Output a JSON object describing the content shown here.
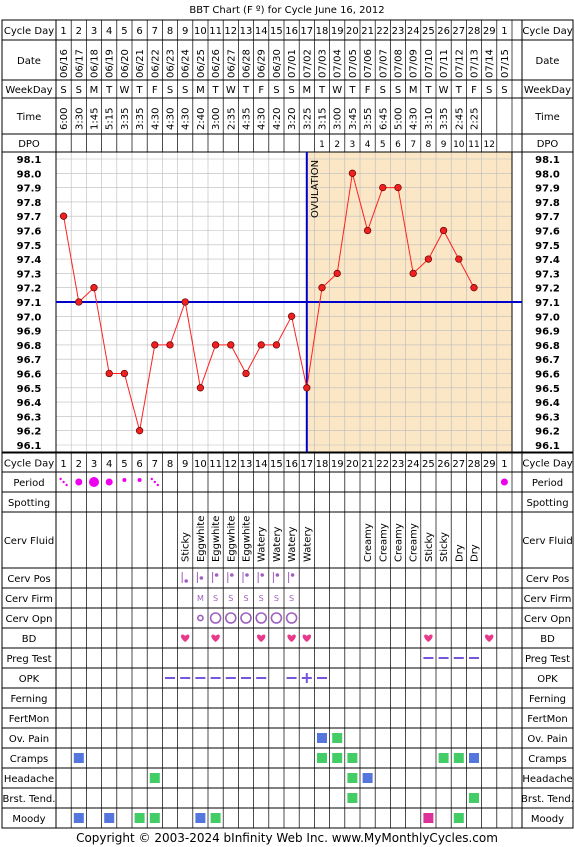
{
  "title": "BBT Chart (F º) for Cycle June 16, 2012",
  "copyright": "Copyright © 2003-2024 bInfinity Web Inc.    www.MyMonthlyCycles.com",
  "row_labels": {
    "cycle_day": "Cycle Day",
    "date": "Date",
    "weekday": "WeekDay",
    "time": "Time",
    "dpo": "DPO",
    "period": "Period",
    "spotting": "Spotting",
    "cerv_fluid": "Cerv Fluid",
    "cerv_pos": "Cerv Pos",
    "cerv_firm": "Cerv Firm",
    "cerv_opn": "Cerv Opn",
    "bd": "BD",
    "preg_test": "Preg Test",
    "opk": "OPK",
    "ferning": "Ferning",
    "fertmon": "FertMon",
    "ov_pain": "Ov. Pain",
    "cramps": "Cramps",
    "headache": "Headache",
    "brst_tend": "Brst. Tend.",
    "moody": "Moody"
  },
  "colors": {
    "line": "#ff2020",
    "point": "#ee2020",
    "coverline": "#0000cc",
    "ovulation": "#0000cc",
    "luteal_fill": "#fbe7c6",
    "grid": "#bbbbbb",
    "period": "#ee00ee",
    "heart": "#e83a8a",
    "purple_marks": "#a060c0",
    "symptom_green": "#44cc66",
    "symptom_blue": "#5577dd",
    "moody_pink": "#dd3399",
    "dash": "#7755dd"
  },
  "chart_data": {
    "type": "line",
    "ylim": [
      96.1,
      98.1
    ],
    "y_ticks": [
      "98.1",
      "98.0",
      "97.9",
      "97.8",
      "97.7",
      "97.6",
      "97.5",
      "97.4",
      "97.3",
      "97.2",
      "97.1",
      "97.0",
      "96.9",
      "96.8",
      "96.7",
      "96.6",
      "96.5",
      "96.4",
      "96.3",
      "96.2",
      "96.1"
    ],
    "cycle_days": [
      "1",
      "2",
      "3",
      "4",
      "5",
      "6",
      "7",
      "8",
      "9",
      "10",
      "11",
      "12",
      "13",
      "14",
      "15",
      "16",
      "17",
      "18",
      "19",
      "20",
      "21",
      "22",
      "23",
      "24",
      "25",
      "26",
      "27",
      "28",
      "29",
      "1"
    ],
    "dates": [
      "06/16",
      "06/17",
      "06/18",
      "06/19",
      "06/20",
      "06/21",
      "06/22",
      "06/23",
      "06/24",
      "06/25",
      "06/26",
      "06/27",
      "06/28",
      "06/29",
      "06/30",
      "07/01",
      "07/02",
      "07/03",
      "07/04",
      "07/05",
      "07/06",
      "07/07",
      "07/08",
      "07/09",
      "07/10",
      "07/11",
      "07/12",
      "07/13",
      "07/14",
      "07/15"
    ],
    "weekdays": [
      "S",
      "S",
      "M",
      "T",
      "W",
      "T",
      "F",
      "S",
      "S",
      "M",
      "T",
      "W",
      "T",
      "F",
      "S",
      "S",
      "M",
      "T",
      "W",
      "T",
      "F",
      "S",
      "S",
      "M",
      "T",
      "W",
      "T",
      "F",
      "S",
      "S"
    ],
    "times": [
      "6:00",
      "3:30",
      "1:45",
      "5:15",
      "3:35",
      "3:35",
      "4:30",
      "4:30",
      "4:30",
      "2:40",
      "3:00",
      "2:35",
      "4:35",
      "4:30",
      "4:20",
      "3:20",
      "3:25",
      "3:15",
      "3:00",
      "3:45",
      "3:55",
      "6:45",
      "5:00",
      "4:30",
      "3:10",
      "3:35",
      "2:45",
      "2:25",
      "",
      ""
    ],
    "dpo": [
      "",
      "",
      "",
      "",
      "",
      "",
      "",
      "",
      "",
      "",
      "",
      "",
      "",
      "",
      "",
      "",
      "",
      "1",
      "2",
      "3",
      "4",
      "5",
      "6",
      "7",
      "8",
      "9",
      "10",
      "11",
      "12",
      ""
    ],
    "temps": [
      97.7,
      97.1,
      97.2,
      96.6,
      96.6,
      96.2,
      96.8,
      96.8,
      97.1,
      96.5,
      96.8,
      96.8,
      96.6,
      96.8,
      96.8,
      97.0,
      96.5,
      97.2,
      97.3,
      98.0,
      97.6,
      97.9,
      97.9,
      97.3,
      97.4,
      97.6,
      97.4,
      97.2,
      null,
      null
    ],
    "coverline": 97.1,
    "ovulation_day": 17,
    "ovulation_label": "OVULATION",
    "period": [
      "dot-small-fade",
      "dot",
      "dot-large",
      "dot",
      "dot-small",
      "dot-small",
      "dot-small-fade",
      "",
      "",
      "",
      "",
      "",
      "",
      "",
      "",
      "",
      "",
      "",
      "",
      "",
      "",
      "",
      "",
      "",
      "",
      "",
      "",
      "",
      "",
      "dot"
    ],
    "cerv_fluid": [
      "",
      "",
      "",
      "",
      "",
      "",
      "",
      "",
      "Sticky",
      "Eggwhite",
      "Eggwhite",
      "Eggwhite",
      "Eggwhite",
      "Watery",
      "Watery",
      "Watery",
      "Watery",
      "",
      "",
      "",
      "Creamy",
      "Creamy",
      "Creamy",
      "Creamy",
      "Sticky",
      "Sticky",
      "Dry",
      "Dry",
      "",
      ""
    ],
    "cerv_pos": [
      "",
      "",
      "",
      "",
      "",
      "",
      "",
      "",
      "low",
      "mid",
      "high",
      "high",
      "high",
      "high",
      "high",
      "high",
      "",
      "",
      "",
      "",
      "",
      "",
      "",
      "",
      "",
      "",
      "",
      "",
      "",
      ""
    ],
    "cerv_firm": [
      "",
      "",
      "",
      "",
      "",
      "",
      "",
      "",
      "",
      "M",
      "S",
      "S",
      "S",
      "S",
      "S",
      "S",
      "",
      "",
      "",
      "",
      "",
      "",
      "",
      "",
      "",
      "",
      "",
      "",
      "",
      ""
    ],
    "cerv_opn": [
      "",
      "",
      "",
      "",
      "",
      "",
      "",
      "",
      "",
      "small",
      "large",
      "large",
      "large",
      "large",
      "large",
      "large",
      "",
      "",
      "",
      "",
      "",
      "",
      "",
      "",
      "",
      "",
      "",
      "",
      "",
      ""
    ],
    "bd": [
      "",
      "",
      "",
      "",
      "",
      "",
      "",
      "",
      "1",
      "",
      "1",
      "",
      "",
      "1",
      "",
      "1",
      "1",
      "",
      "",
      "",
      "",
      "",
      "",
      "",
      "1",
      "",
      "",
      "",
      "1",
      ""
    ],
    "preg_test": [
      "",
      "",
      "",
      "",
      "",
      "",
      "",
      "",
      "",
      "",
      "",
      "",
      "",
      "",
      "",
      "",
      "",
      "",
      "",
      "",
      "",
      "",
      "",
      "",
      "neg",
      "neg",
      "neg",
      "neg",
      "",
      ""
    ],
    "opk": [
      "",
      "",
      "",
      "",
      "",
      "",
      "",
      "neg",
      "neg",
      "neg",
      "neg",
      "neg",
      "neg",
      "neg",
      "",
      "neg",
      "pos",
      "neg",
      "",
      "",
      "",
      "",
      "",
      "",
      "",
      "",
      "",
      "",
      "",
      ""
    ],
    "ov_pain": [
      "",
      "",
      "",
      "",
      "",
      "",
      "",
      "",
      "",
      "",
      "",
      "",
      "",
      "",
      "",
      "",
      "",
      "blue",
      "green",
      "",
      "",
      "",
      "",
      "",
      "",
      "",
      "",
      "",
      "",
      ""
    ],
    "cramps": [
      "",
      "blue",
      "",
      "",
      "",
      "",
      "",
      "",
      "",
      "",
      "",
      "",
      "",
      "",
      "",
      "",
      "",
      "green",
      "green",
      "green",
      "",
      "",
      "",
      "",
      "",
      "green",
      "green",
      "blue",
      "",
      ""
    ],
    "headache": [
      "",
      "",
      "",
      "",
      "",
      "",
      "green",
      "",
      "",
      "",
      "",
      "",
      "",
      "",
      "",
      "",
      "",
      "",
      "",
      "green",
      "blue",
      "",
      "",
      "",
      "",
      "",
      "",
      "",
      "",
      ""
    ],
    "brst_tend": [
      "",
      "",
      "",
      "",
      "",
      "",
      "",
      "",
      "",
      "",
      "",
      "",
      "",
      "",
      "",
      "",
      "",
      "",
      "",
      "green",
      "",
      "",
      "",
      "",
      "",
      "",
      "",
      "green",
      "",
      ""
    ],
    "moody": [
      "",
      "blue",
      "",
      "blue",
      "",
      "green",
      "green",
      "",
      "",
      "blue",
      "green",
      "",
      "",
      "",
      "",
      "",
      "",
      "",
      "",
      "",
      "",
      "",
      "",
      "",
      "pink",
      "",
      "green",
      "",
      "",
      ""
    ]
  }
}
